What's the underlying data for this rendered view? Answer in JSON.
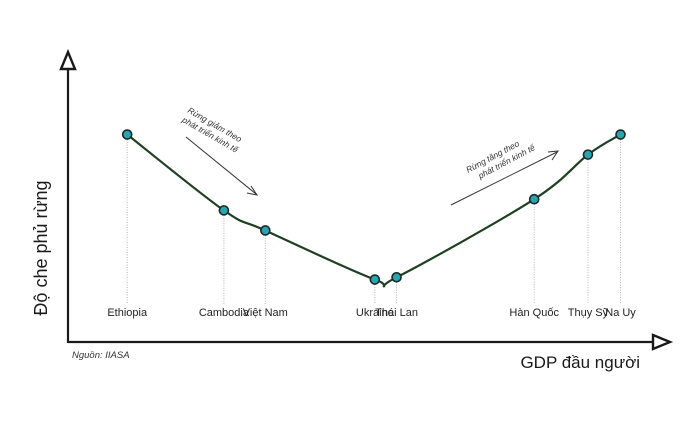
{
  "chart_data": {
    "type": "line",
    "xlabel": "GDP đầu người",
    "ylabel": "Độ che phủ rừng",
    "source": "Nguồn: IIASA",
    "categories": [
      "Ethiopia",
      "Cambodia",
      "Việt Nam",
      "Ukraine",
      "Thái Lan",
      "Hàn Quốc",
      "Thụy Sỹ",
      "Na Uy"
    ],
    "x": [
      0.0,
      0.196,
      0.28,
      0.502,
      0.546,
      0.825,
      0.934,
      1.0
    ],
    "y": [
      0.93,
      0.59,
      0.5,
      0.28,
      0.29,
      0.64,
      0.84,
      0.93
    ],
    "ylim": [
      0,
      1.3
    ],
    "xlim": [
      -0.12,
      1.08
    ],
    "grid": false,
    "annotations": [
      {
        "text_lines": [
          "Rừng giảm theo",
          "phát triển kinh tế"
        ],
        "direction": "down"
      },
      {
        "text_lines": [
          "Rừng tăng theo",
          "phát triển kinh tế"
        ],
        "direction": "up"
      }
    ],
    "colors": {
      "curve": "#1f3f23",
      "point": "#2aa5b0",
      "axis": "#1a1a1a"
    }
  }
}
